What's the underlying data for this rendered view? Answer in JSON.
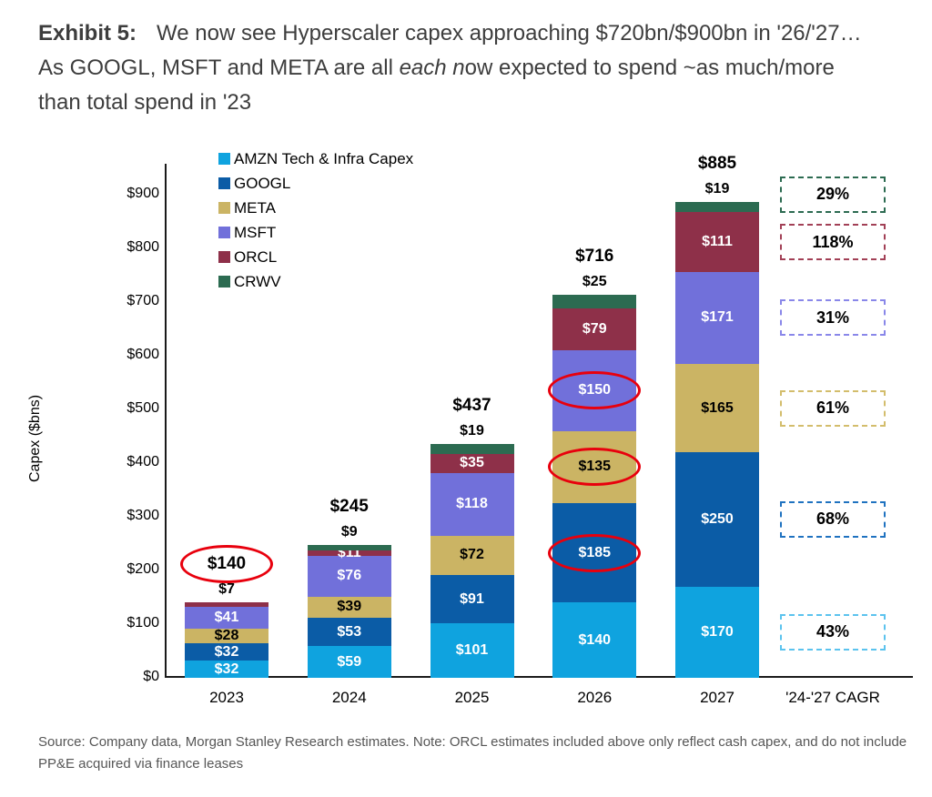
{
  "page": {
    "title": {
      "segments": [
        {
          "text": "Exhibit 5:",
          "bold": true
        },
        {
          "text": "We now see Hyperscaler capex approaching $720bn/$900bn in '26/'27… As GOOGL, MSFT and META are all "
        },
        {
          "text": "each n",
          "italic": true
        },
        {
          "text": "ow expected to spend ~as much/more than total spend in '23"
        }
      ]
    },
    "source_note": "Source: Company data, Morgan Stanley Research estimates. Note: ORCL estimates included above only reflect cash capex, and do not include PP&E acquired via finance leases"
  },
  "chart_data": {
    "type": "bar",
    "stacked": true,
    "ylabel": "Capex ($bns)",
    "ylim": [
      0,
      950
    ],
    "yticks": [
      "$0",
      "$100",
      "$200",
      "$300",
      "$400",
      "$500",
      "$600",
      "$700",
      "$800",
      "$900"
    ],
    "ytick_values": [
      0,
      100,
      200,
      300,
      400,
      500,
      600,
      700,
      800,
      900
    ],
    "grid": false,
    "legend_position": "top-left-inside",
    "categories": [
      "2023",
      "2024",
      "2025",
      "2026",
      "2027"
    ],
    "extra_column_label": "'24-'27 CAGR",
    "totals": [
      140,
      245,
      437,
      716,
      885
    ],
    "totals_display": [
      "$140",
      "$245",
      "$437",
      "$716",
      "$885"
    ],
    "series": [
      {
        "key": "amzn",
        "name": "AMZN Tech & Infra Capex",
        "color": "#0FA3DF",
        "values": [
          32,
          59,
          101,
          140,
          170
        ],
        "labels": [
          "$32",
          "$59",
          "$101",
          "$140",
          "$170"
        ],
        "label_pos": [
          "in",
          "in",
          "in",
          "in",
          "in"
        ],
        "label_color": "#ffffff",
        "cagr": "43%",
        "cagr_box_color": "#5BC3EE",
        "cagr_box_dy": 0
      },
      {
        "key": "googl",
        "name": "GOOGL",
        "color": "#0B5CA6",
        "values": [
          32,
          53,
          91,
          185,
          250
        ],
        "labels": [
          "$32",
          "$53",
          "$91",
          "$185",
          "$250"
        ],
        "label_pos": [
          "in",
          "in",
          "in",
          "in",
          "in"
        ],
        "label_color": "#ffffff",
        "cagr": "68%",
        "cagr_box_color": "#1F72C0",
        "cagr_box_dy": 0
      },
      {
        "key": "meta",
        "name": "META",
        "color": "#CBB464",
        "values": [
          28,
          39,
          72,
          135,
          165
        ],
        "labels": [
          "$28",
          "$39",
          "$72",
          "$135",
          "$165"
        ],
        "label_pos": [
          "in",
          "in",
          "in",
          "in",
          "in"
        ],
        "label_color": "#000000",
        "cagr": "61%",
        "cagr_box_color": "#D3BD6C",
        "cagr_box_dy": 0
      },
      {
        "key": "msft",
        "name": "MSFT",
        "color": "#7170DA",
        "values": [
          41,
          76,
          118,
          150,
          171
        ],
        "labels": [
          "$41",
          "$76",
          "$118",
          "$150",
          "$171"
        ],
        "label_pos": [
          "in",
          "in",
          "in",
          "in",
          "in"
        ],
        "label_color": "#ffffff",
        "cagr": "31%",
        "cagr_box_color": "#8987E9",
        "cagr_box_dy": 0
      },
      {
        "key": "orcl",
        "name": "ORCL",
        "color": "#8E3049",
        "values": [
          7,
          11,
          35,
          79,
          111
        ],
        "labels": [
          "$7",
          "$11",
          "$35",
          "$79",
          "$111"
        ],
        "label_pos": [
          "above",
          "in",
          "in",
          "in",
          "in"
        ],
        "label_color": "#ffffff",
        "cagr": "118%",
        "cagr_box_color": "#A24056",
        "cagr_box_dy": 0
      },
      {
        "key": "crwv",
        "name": "CRWV",
        "color": "#2C6B51",
        "values": [
          0,
          9,
          19,
          25,
          19
        ],
        "labels": [
          "",
          "$9",
          "$19",
          "$25",
          "$19"
        ],
        "label_pos": [
          "none",
          "above",
          "above",
          "above",
          "above"
        ],
        "label_color": "#ffffff",
        "cagr": "29%",
        "cagr_box_color": "#2C6B51",
        "cagr_box_dy": -14
      }
    ],
    "annotations": {
      "red_circle_color": "#e8000d",
      "red_circles": [
        {
          "category": "2023",
          "target": "total"
        },
        {
          "category": "2026",
          "target": "googl"
        },
        {
          "category": "2026",
          "target": "meta"
        },
        {
          "category": "2026",
          "target": "msft"
        }
      ]
    }
  }
}
